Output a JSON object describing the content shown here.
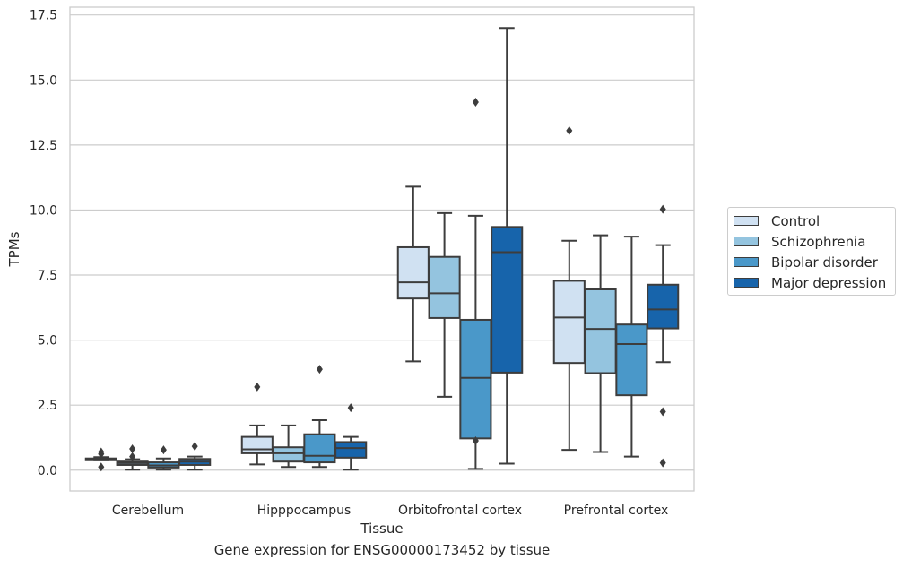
{
  "chart_data": {
    "type": "box",
    "caption": "Gene expression for ENSG00000173452 by tissue",
    "xlabel": "Tissue",
    "ylabel": "TPMs",
    "ylim": [
      -0.8,
      17.8
    ],
    "yticks": [
      0.0,
      2.5,
      5.0,
      7.5,
      10.0,
      12.5,
      15.0,
      17.5
    ],
    "ytick_labels": [
      "0.0",
      "2.5",
      "5.0",
      "7.5",
      "10.0",
      "12.5",
      "15.0",
      "17.5"
    ],
    "grid": "horizontal",
    "legend_position": "outside-right",
    "categories": [
      "Cerebellum",
      "Hipppocampus",
      "Orbitofrontal cortex",
      "Prefrontal cortex"
    ],
    "series": [
      {
        "name": "Control",
        "color": "#d0e1f2",
        "boxes": [
          {
            "whisker_low": 0.38,
            "q1": 0.38,
            "median": 0.4,
            "q3": 0.45,
            "whisker_high": 0.5,
            "outliers": [
              0.12,
              0.62,
              0.7
            ]
          },
          {
            "whisker_low": 0.22,
            "q1": 0.65,
            "median": 0.8,
            "q3": 1.28,
            "whisker_high": 1.72,
            "outliers": [
              3.2
            ]
          },
          {
            "whisker_low": 4.18,
            "q1": 6.6,
            "median": 7.22,
            "q3": 8.57,
            "whisker_high": 10.9,
            "outliers": []
          },
          {
            "whisker_low": 0.78,
            "q1": 4.12,
            "median": 5.87,
            "q3": 7.28,
            "whisker_high": 8.82,
            "outliers": [
              13.05
            ]
          }
        ]
      },
      {
        "name": "Schizophrenia",
        "color": "#94c4df",
        "boxes": [
          {
            "whisker_low": 0.02,
            "q1": 0.2,
            "median": 0.27,
            "q3": 0.33,
            "whisker_high": 0.42,
            "outliers": [
              0.52,
              0.82
            ]
          },
          {
            "whisker_low": 0.12,
            "q1": 0.33,
            "median": 0.65,
            "q3": 0.88,
            "whisker_high": 1.72,
            "outliers": []
          },
          {
            "whisker_low": 2.82,
            "q1": 5.85,
            "median": 6.8,
            "q3": 8.2,
            "whisker_high": 9.88,
            "outliers": []
          },
          {
            "whisker_low": 0.7,
            "q1": 3.73,
            "median": 5.43,
            "q3": 6.95,
            "whisker_high": 9.03,
            "outliers": []
          }
        ]
      },
      {
        "name": "Bipolar disorder",
        "color": "#4a98c9",
        "boxes": [
          {
            "whisker_low": 0.02,
            "q1": 0.1,
            "median": 0.18,
            "q3": 0.3,
            "whisker_high": 0.45,
            "outliers": [
              0.78
            ]
          },
          {
            "whisker_low": 0.12,
            "q1": 0.3,
            "median": 0.55,
            "q3": 1.38,
            "whisker_high": 1.92,
            "outliers": [
              3.88
            ]
          },
          {
            "whisker_low": 0.05,
            "q1": 1.22,
            "median": 3.55,
            "q3": 5.78,
            "whisker_high": 9.78,
            "outliers": [
              1.13,
              14.15
            ]
          },
          {
            "whisker_low": 0.52,
            "q1": 2.88,
            "median": 4.85,
            "q3": 5.6,
            "whisker_high": 8.98,
            "outliers": []
          }
        ]
      },
      {
        "name": "Major depression",
        "color": "#1764ab",
        "boxes": [
          {
            "whisker_low": 0.02,
            "q1": 0.2,
            "median": 0.33,
            "q3": 0.43,
            "whisker_high": 0.52,
            "outliers": [
              0.92
            ]
          },
          {
            "whisker_low": 0.02,
            "q1": 0.48,
            "median": 0.85,
            "q3": 1.08,
            "whisker_high": 1.28,
            "outliers": [
              2.4
            ]
          },
          {
            "whisker_low": 0.25,
            "q1": 3.75,
            "median": 8.38,
            "q3": 9.35,
            "whisker_high": 17.0,
            "outliers": []
          },
          {
            "whisker_low": 4.15,
            "q1": 5.45,
            "median": 6.18,
            "q3": 7.13,
            "whisker_high": 8.65,
            "outliers": [
              0.28,
              2.25,
              10.03
            ]
          }
        ]
      }
    ]
  }
}
